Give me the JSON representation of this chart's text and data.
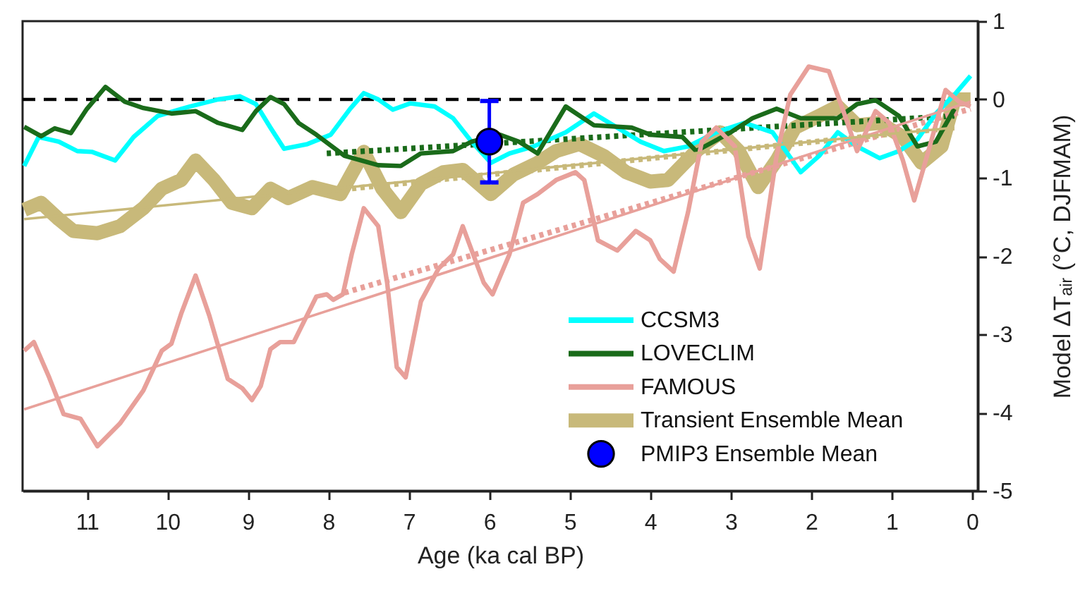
{
  "chart_data": {
    "type": "line",
    "xlabel": "Age (ka cal BP)",
    "ylabel": "Model ΔTₐᵢᵣ (°C, DJFMAM)",
    "xlim": [
      11.8,
      -0.07
    ],
    "ylim": [
      -5,
      1
    ],
    "xticks": [
      11,
      10,
      9,
      8,
      7,
      6,
      5,
      4,
      3,
      2,
      1,
      0
    ],
    "yticks": [
      1,
      0,
      -1,
      -2,
      -3,
      -4,
      -5
    ],
    "grid": false,
    "legend": "bottom right",
    "ref_lines": [
      {
        "axis": "y",
        "value": 0,
        "color": "#000000",
        "line_style": "dashed"
      }
    ],
    "series": [
      {
        "name": "CCSM3",
        "type": "line",
        "color": "#00ffff",
        "line_style": "solid",
        "x": [
          11.78,
          11.6,
          11.35,
          11.12,
          10.94,
          10.65,
          10.42,
          10.12,
          9.72,
          9.37,
          9.1,
          8.9,
          8.72,
          8.55,
          8.26,
          7.97,
          7.73,
          7.56,
          7.38,
          7.2,
          6.98,
          6.68,
          6.45,
          6.22,
          5.98,
          5.75,
          5.45,
          5.05,
          4.7,
          4.41,
          4.12,
          3.83,
          3.53,
          3.18,
          2.83,
          2.48,
          2.13,
          1.9,
          1.67,
          1.43,
          1.15,
          0.91,
          0.68,
          0.45,
          0.22,
          0.02
        ],
        "values": [
          -0.85,
          -0.48,
          -0.54,
          -0.66,
          -0.67,
          -0.78,
          -0.48,
          -0.21,
          -0.09,
          0,
          0.04,
          -0.06,
          -0.36,
          -0.63,
          -0.57,
          -0.45,
          -0.12,
          0.08,
          0,
          -0.13,
          -0.05,
          -0.09,
          -0.24,
          -0.54,
          -0.81,
          -0.69,
          -0.6,
          -0.42,
          -0.18,
          -0.36,
          -0.54,
          -0.66,
          -0.6,
          -0.42,
          -0.3,
          -0.42,
          -0.93,
          -0.72,
          -0.42,
          -0.6,
          -0.75,
          -0.66,
          -0.51,
          -0.18,
          0.06,
          0.3
        ]
      },
      {
        "name": "LOVECLIM",
        "type": "line",
        "color": "#1a6b1a",
        "line_style": "solid",
        "x": [
          11.78,
          11.57,
          11.4,
          11.2,
          11.0,
          10.77,
          10.53,
          10.3,
          9.95,
          9.65,
          9.37,
          9.07,
          8.9,
          8.72,
          8.55,
          8.37,
          8.15,
          7.8,
          7.38,
          7.1,
          6.85,
          6.45,
          6.22,
          5.87,
          5.63,
          5.4,
          5.05,
          4.7,
          4.23,
          4.0,
          3.6,
          3.43,
          3.0,
          2.73,
          2.43,
          2.13,
          1.67,
          1.43,
          1.2,
          0.91,
          0.68,
          0.45,
          0.22
        ],
        "values": [
          -0.35,
          -0.47,
          -0.37,
          -0.43,
          -0.12,
          0.16,
          -0.03,
          -0.11,
          -0.18,
          -0.15,
          -0.3,
          -0.39,
          -0.15,
          0.03,
          -0.06,
          -0.3,
          -0.45,
          -0.72,
          -0.84,
          -0.85,
          -0.69,
          -0.66,
          -0.54,
          -0.45,
          -0.54,
          -0.69,
          -0.09,
          -0.33,
          -0.36,
          -0.45,
          -0.48,
          -0.66,
          -0.42,
          -0.24,
          -0.12,
          -0.24,
          -0.24,
          -0.06,
          -0.01,
          -0.21,
          -0.6,
          -0.54,
          -0.12
        ]
      },
      {
        "name": "FAMOUS",
        "type": "line",
        "color": "#e8a09a",
        "line_style": "solid",
        "x": [
          11.78,
          11.66,
          11.47,
          11.29,
          11.08,
          10.87,
          10.59,
          10.3,
          10.07,
          9.95,
          9.83,
          9.65,
          9.48,
          9.25,
          9.07,
          8.95,
          8.84,
          8.72,
          8.6,
          8.43,
          8.15,
          8.02,
          7.94,
          7.82,
          7.71,
          7.56,
          7.38,
          7.27,
          7.15,
          7.04,
          6.85,
          6.63,
          6.45,
          6.33,
          6.07,
          5.96,
          5.75,
          5.58,
          5.4,
          5.17,
          4.93,
          4.82,
          4.65,
          4.41,
          4.18,
          4.0,
          3.88,
          3.71,
          3.53,
          3.36,
          3.18,
          2.95,
          2.78,
          2.64,
          2.43,
          2.26,
          2.03,
          1.78,
          1.61,
          1.43,
          1.2,
          1.03,
          0.86,
          0.72,
          0.56,
          0.33,
          0.16,
          0.02
        ],
        "values": [
          -3.21,
          -3.1,
          -3.55,
          -4.02,
          -4.08,
          -4.43,
          -4.14,
          -3.72,
          -3.21,
          -3.12,
          -2.74,
          -2.25,
          -2.76,
          -3.57,
          -3.69,
          -3.84,
          -3.66,
          -3.19,
          -3.1,
          -3.1,
          -2.52,
          -2.49,
          -2.56,
          -2.49,
          -1.98,
          -1.39,
          -1.62,
          -2.34,
          -3.42,
          -3.55,
          -2.58,
          -2.16,
          -1.98,
          -1.62,
          -2.34,
          -2.49,
          -1.98,
          -1.32,
          -1.21,
          -1.03,
          -0.93,
          -1.03,
          -1.8,
          -1.93,
          -1.68,
          -1.8,
          -2.04,
          -2.2,
          -1.44,
          -0.54,
          -0.36,
          -0.6,
          -1.75,
          -2.16,
          -0.72,
          0.06,
          0.42,
          0.36,
          -0.12,
          -0.66,
          -0.15,
          -0.3,
          -0.78,
          -1.29,
          -0.72,
          0.12,
          -0.03,
          -0.09
        ]
      },
      {
        "name": "Transient Ensemble Mean",
        "type": "line",
        "color": "#c8b97a",
        "line_style": "solid",
        "x": [
          11.78,
          11.57,
          11.35,
          11.17,
          10.87,
          10.59,
          10.3,
          10.07,
          9.83,
          9.65,
          9.42,
          9.2,
          8.95,
          8.72,
          8.5,
          8.2,
          7.85,
          7.56,
          7.33,
          7.1,
          6.85,
          6.57,
          6.33,
          5.98,
          5.7,
          5.4,
          5.17,
          4.88,
          4.58,
          4.3,
          4.0,
          3.78,
          3.43,
          3.13,
          2.9,
          2.66,
          2.43,
          2.2,
          1.9,
          1.67,
          1.43,
          1.15,
          0.86,
          0.63,
          0.38,
          0.22,
          0.02
        ],
        "values": [
          -1.41,
          -1.32,
          -1.53,
          -1.68,
          -1.71,
          -1.62,
          -1.39,
          -1.14,
          -1.03,
          -0.78,
          -1.03,
          -1.32,
          -1.39,
          -1.14,
          -1.26,
          -1.12,
          -1.21,
          -0.67,
          -1.14,
          -1.44,
          -1.08,
          -0.93,
          -0.9,
          -1.21,
          -0.96,
          -0.81,
          -0.66,
          -0.57,
          -0.72,
          -0.93,
          -1.05,
          -1.03,
          -0.66,
          -0.42,
          -0.66,
          -1.12,
          -0.78,
          -0.36,
          -0.21,
          -0.09,
          -0.33,
          -0.3,
          -0.48,
          -0.81,
          -0.6,
          0,
          0
        ]
      },
      {
        "name": "PMIP3 Ensemble Mean",
        "type": "scatter",
        "color": "#0000ff",
        "marker": "circle",
        "x": [
          6
        ],
        "values": [
          -0.54
        ],
        "errors": [
          0.52
        ]
      },
      {
        "type": "line",
        "color": "#1a6b1a",
        "line_style": "dotted",
        "x": [
          8.02,
          0.22
        ],
        "values": [
          -0.69,
          -0.21
        ]
      },
      {
        "type": "line",
        "color": "#e8a09a",
        "line_style": "solid",
        "x": [
          11.78,
          0.02
        ],
        "values": [
          -3.96,
          -0.03
        ]
      },
      {
        "type": "line",
        "color": "#e8a09a",
        "line_style": "dotted",
        "x": [
          7.8,
          0.02
        ],
        "values": [
          -2.47,
          -0.12
        ]
      },
      {
        "type": "line",
        "color": "#c8b97a",
        "line_style": "solid",
        "x": [
          11.78,
          0.22
        ],
        "values": [
          -1.53,
          -0.36
        ]
      },
      {
        "type": "line",
        "color": "#c8b97a",
        "line_style": "dotted",
        "x": [
          8.02,
          0.22
        ],
        "values": [
          -1.17,
          -0.36
        ]
      }
    ]
  }
}
